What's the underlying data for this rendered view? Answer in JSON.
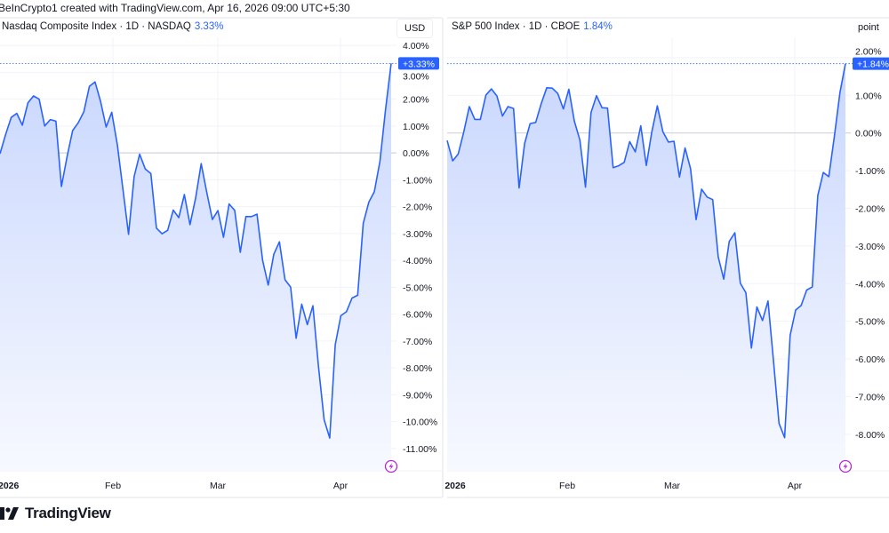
{
  "credit": "BeInCrypto1 created with TradingView.com, Apr 16, 2026 09:00 UTC+5:30",
  "brand": "TradingView",
  "colors": {
    "line": "#2962ff",
    "fill_top": "#c9d7fd",
    "fill_bottom": "#f7f9ff",
    "grid": "#f0f3fa",
    "badge": "#2962ff",
    "event_icon": "#b02ed1"
  },
  "chart_data": [
    {
      "type": "area",
      "title": "Nasdaq Composite Index · 1D · NASDAQ",
      "last_change": "3.33%",
      "last_badge": "+3.33%",
      "unit": "USD",
      "ylabel": "% change",
      "ylim": [
        -11.83,
        4.3
      ],
      "grid": true,
      "y_ticks": [
        "4.00%",
        "3.00%",
        "2.00%",
        "1.00%",
        "0.00%",
        "-1.00%",
        "-2.00%",
        "-3.00%",
        "-4.00%",
        "-5.00%",
        "-6.00%",
        "-7.00%",
        "-8.00%",
        "-9.00%",
        "-10.00%",
        "-11.00%"
      ],
      "y_tick_values": [
        4,
        3,
        2,
        1,
        0,
        -1,
        -2,
        -3,
        -4,
        -5,
        -6,
        -7,
        -8,
        -9,
        -10,
        -11
      ],
      "x_ticks": [
        "2026",
        "Feb",
        "Mar",
        "Apr"
      ],
      "values": [
        -0.03,
        0.68,
        1.32,
        1.47,
        1.03,
        1.86,
        2.12,
        2.0,
        1.0,
        1.24,
        1.18,
        -1.25,
        -0.15,
        0.83,
        1.12,
        1.53,
        2.48,
        2.64,
        1.92,
        0.96,
        1.51,
        0.3,
        -1.36,
        -3.03,
        -0.88,
        -0.05,
        -0.6,
        -0.77,
        -2.8,
        -3.01,
        -2.88,
        -2.13,
        -2.41,
        -1.55,
        -2.67,
        -1.69,
        -0.4,
        -1.47,
        -2.48,
        -2.15,
        -3.14,
        -1.9,
        -2.14,
        -3.7,
        -2.37,
        -2.37,
        -2.28,
        -4.0,
        -4.92,
        -3.77,
        -3.31,
        -4.72,
        -4.99,
        -6.9,
        -5.63,
        -6.39,
        -5.69,
        -7.97,
        -9.93,
        -10.61,
        -7.14,
        -6.06,
        -5.91,
        -5.4,
        -5.3,
        -2.62,
        -1.83,
        -1.44,
        -0.31,
        1.62,
        3.33
      ]
    },
    {
      "type": "area",
      "title": "S&P 500 Index · 1D · CBOE",
      "last_change": "1.84%",
      "last_badge": "+1.84%",
      "unit": "point",
      "ylabel": "% change",
      "ylim": [
        -8.97,
        2.54
      ],
      "grid": true,
      "y_ticks": [
        "2.00%",
        "1.00%",
        "0.00%",
        "-1.00%",
        "-2.00%",
        "-3.00%",
        "-4.00%",
        "-5.00%",
        "-6.00%",
        "-7.00%",
        "-8.00%"
      ],
      "y_tick_values": [
        2,
        1,
        0,
        -1,
        -2,
        -3,
        -4,
        -5,
        -6,
        -7,
        -8
      ],
      "x_ticks": [
        "2026",
        "Feb",
        "Mar",
        "Apr"
      ],
      "values": [
        -0.2,
        -0.74,
        -0.56,
        0.03,
        0.7,
        0.36,
        0.36,
        1.01,
        1.17,
        0.98,
        0.45,
        0.7,
        0.65,
        -1.46,
        -0.28,
        0.25,
        0.28,
        0.78,
        1.2,
        1.19,
        1.05,
        0.64,
        1.16,
        0.31,
        -0.19,
        -1.44,
        0.54,
        0.99,
        0.67,
        0.66,
        -0.92,
        -0.87,
        -0.78,
        -0.23,
        -0.5,
        0.19,
        -0.86,
        0.03,
        0.72,
        0.03,
        -0.24,
        -0.22,
        -1.17,
        -0.4,
        -0.95,
        -2.3,
        -1.49,
        -1.7,
        -1.77,
        -3.29,
        -3.88,
        -2.88,
        -2.65,
        -3.99,
        -4.24,
        -5.71,
        -4.62,
        -4.98,
        -4.46,
        -6.06,
        -7.71,
        -8.09,
        -5.37,
        -4.7,
        -4.58,
        -4.17,
        -4.09,
        -1.66,
        -1.05,
        -1.16,
        -0.08,
        1.07,
        1.84
      ]
    }
  ]
}
